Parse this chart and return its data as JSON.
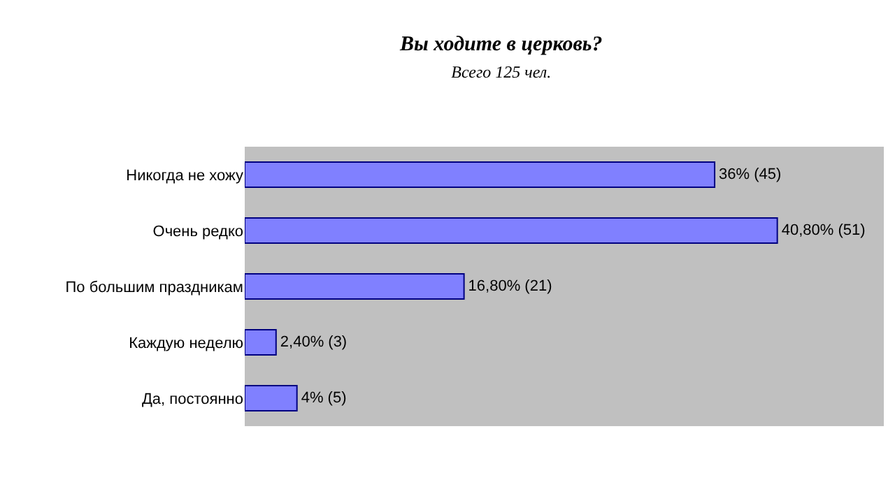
{
  "chart_data": {
    "type": "bar",
    "orientation": "horizontal",
    "title": "Вы ходите в церковь?",
    "subtitle": "Всего 125 чел.",
    "categories": [
      "Никогда не хожу",
      "Очень редко",
      "По большим праздникам",
      "Каждую неделю",
      "Да, постоянно"
    ],
    "values": [
      36,
      40.8,
      16.8,
      2.4,
      4
    ],
    "value_labels": [
      "36% (45)",
      "40,80% (51)",
      "16,80% (21)",
      "2,40% (3)",
      "4% (5)"
    ],
    "color": "#8080ff",
    "grid": false,
    "legend": false
  }
}
